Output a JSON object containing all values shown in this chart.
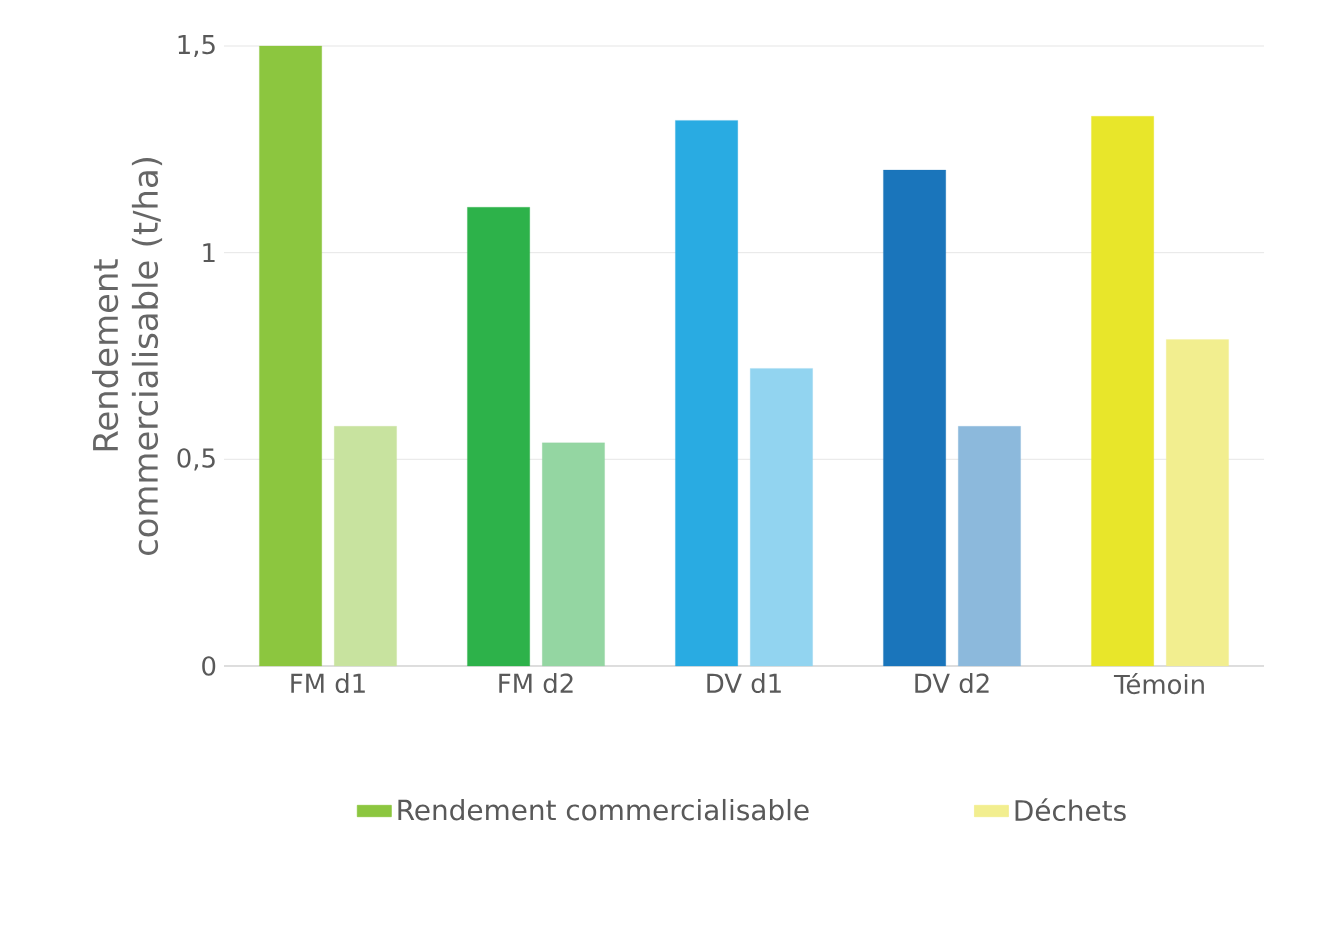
{
  "chart_data": {
    "type": "bar",
    "ylabel": "Rendement commercialisable (t/ha)",
    "categories": [
      "FM d1",
      "FM d2",
      "DV d1",
      "DV d2",
      "Témoin"
    ],
    "series": [
      {
        "name": "Rendement commercialisable",
        "color": "#8cc63f",
        "colors": [
          "#8cc63f",
          "#2db24a",
          "#29abe2",
          "#1a75bb",
          "#e8e62a"
        ],
        "values": [
          1.5,
          1.11,
          1.32,
          1.2,
          1.33
        ]
      },
      {
        "name": "Déchets",
        "color": "#f2ee8f",
        "colors": [
          "#c8e39f",
          "#94d6a2",
          "#92d4f0",
          "#8cb9dc",
          "#f2ee8f"
        ],
        "values": [
          0.58,
          0.54,
          0.72,
          0.58,
          0.79
        ]
      }
    ],
    "ylim": [
      0,
      1.5
    ],
    "yticks": [
      0,
      {
        "value": 0.5,
        "label": "0,5"
      },
      1,
      {
        "value": 1.5,
        "label": "1,5"
      }
    ],
    "grid": "y",
    "legend": "bottom"
  }
}
